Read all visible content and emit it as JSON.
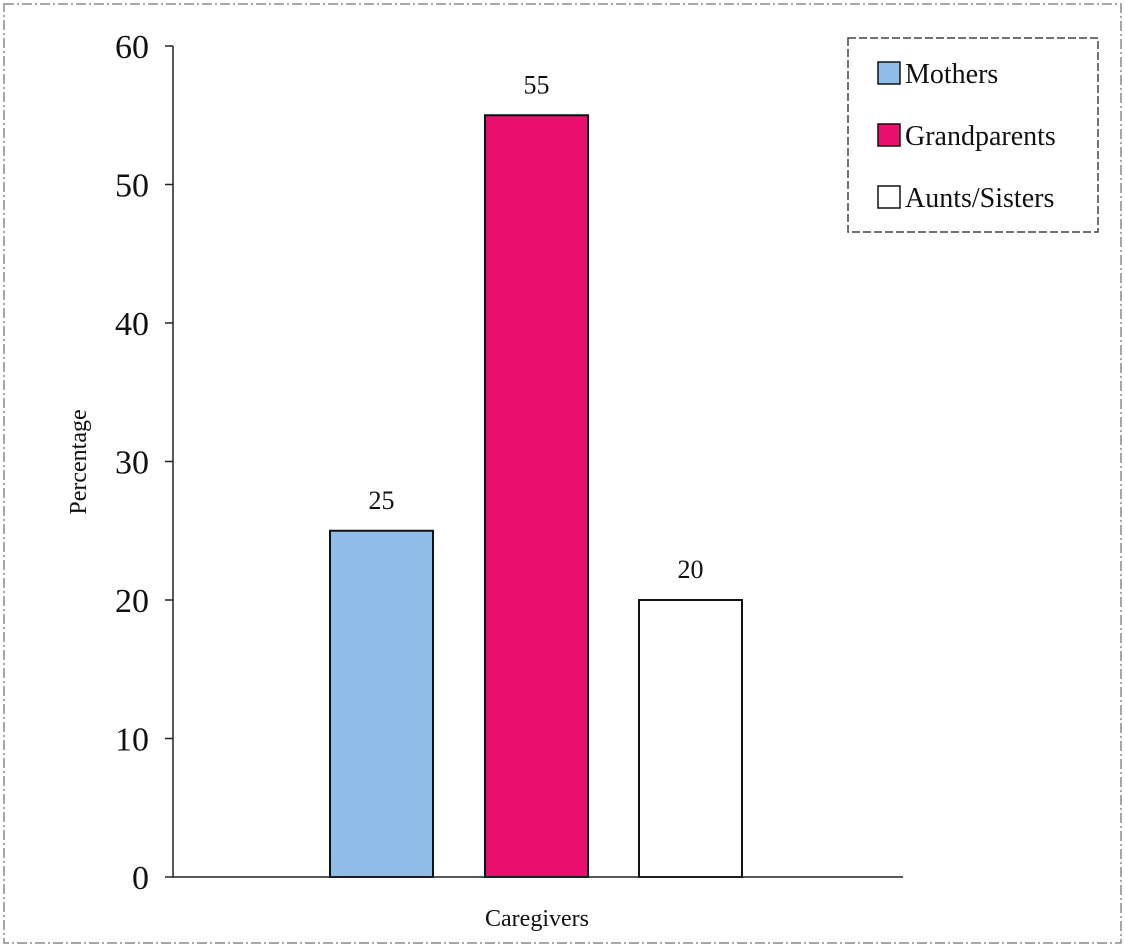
{
  "chart_data": {
    "type": "bar",
    "title": "",
    "xlabel": "Caregivers",
    "ylabel": "Percentage",
    "ylim": [
      0,
      60
    ],
    "yticks": [
      0,
      10,
      20,
      30,
      40,
      50,
      60
    ],
    "grid": false,
    "legend_position": "top-right",
    "series": [
      {
        "name": "Mothers",
        "value": 25,
        "color": "#8fbde8"
      },
      {
        "name": "Grandparents",
        "value": 55,
        "color": "#ea0f6c"
      },
      {
        "name": "Aunts/Sisters",
        "value": 20,
        "color": "#ffffff"
      }
    ]
  }
}
